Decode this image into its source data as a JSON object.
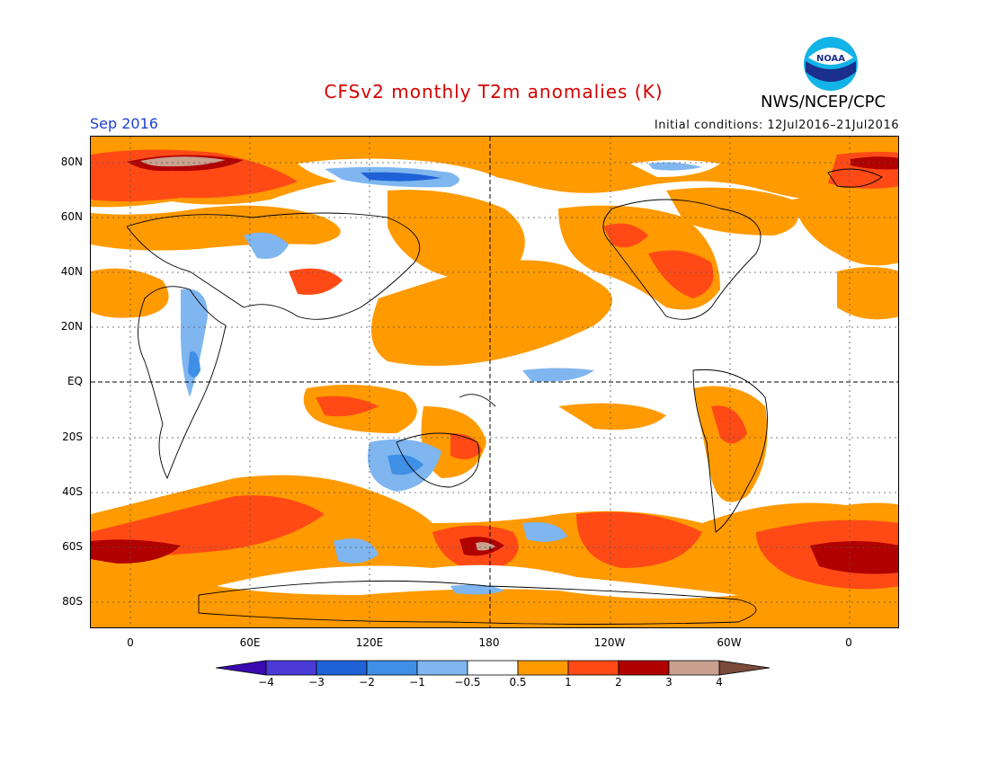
{
  "header": {
    "title": "CFSv2 monthly T2m anomalies (K)",
    "month": "Sep 2016",
    "initial_conditions": "Initial conditions: 12Jul2016–21Jul2016",
    "agency": "NWS/NCEP/CPC",
    "logo_text": "NOAA"
  },
  "axes": {
    "lat_labels": [
      "80N",
      "60N",
      "40N",
      "20N",
      "EQ",
      "20S",
      "40S",
      "60S",
      "80S"
    ],
    "lon_labels": [
      "0",
      "60E",
      "120E",
      "180",
      "120W",
      "60W",
      "0"
    ]
  },
  "colorbar": {
    "labels": [
      "−4",
      "−3",
      "−2",
      "−1",
      "−0.5",
      "0.5",
      "1",
      "2",
      "3",
      "4"
    ],
    "colors": [
      "#3a0ab0",
      "#4a3ad6",
      "#1f62d8",
      "#3f8fe6",
      "#7fb6f0",
      "#ffffff",
      "#ff9a00",
      "#ff4a16",
      "#b00000",
      "#caa08f",
      "#7a4a3a"
    ]
  }
}
